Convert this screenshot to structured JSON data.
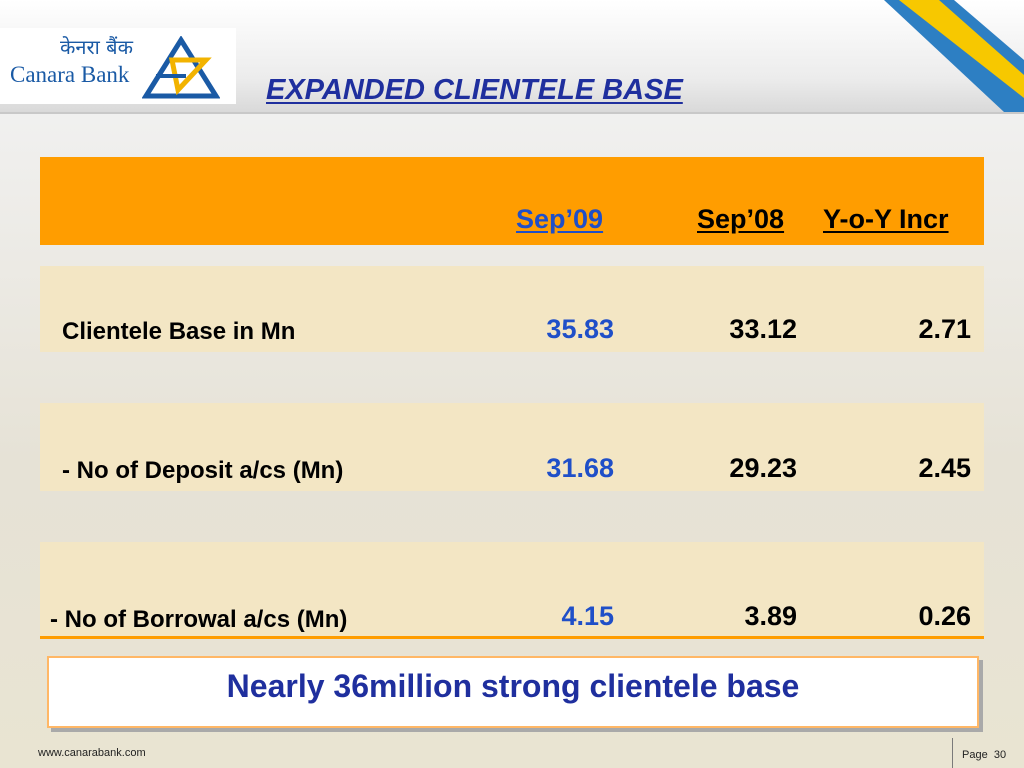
{
  "header": {
    "logo_hindi": "केनरा बैंक",
    "logo_english": "Canara Bank",
    "title": "EXPANDED CLIENTELE BASE"
  },
  "table": {
    "columns": [
      "Sep’09",
      "Sep’08",
      "Y-o-Y Incr"
    ],
    "rows": [
      {
        "label": "Clientele Base in Mn",
        "sep09": "35.83",
        "sep08": "33.12",
        "yoy": "2.71"
      },
      {
        "label": "- No of Deposit a/cs (Mn)",
        "sep09": "31.68",
        "sep08": "29.23",
        "yoy": "2.45"
      },
      {
        "label": "- No of Borrowal a/cs (Mn)",
        "sep09": "4.15",
        "sep08": "3.89",
        "yoy": "0.26"
      }
    ]
  },
  "callout": "Nearly 36million strong clientele base",
  "footer": {
    "url": "www.canarabank.com",
    "page_label": "Page",
    "page_number": "30"
  },
  "colors": {
    "header_band": "#ff9d00",
    "row_band": "#f3e6c4",
    "title_blue": "#1f2f9e",
    "value_blue": "#1f4fc8",
    "logo_blue": "#1a5aa5",
    "logo_yellow": "#f2b300"
  }
}
